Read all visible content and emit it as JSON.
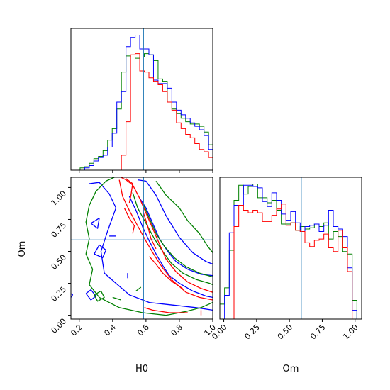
{
  "chart_data": [
    {
      "type": "histogram",
      "parameter": "H0",
      "panel": "top-left",
      "x_range": [
        0.15,
        1.0
      ],
      "y_ticks_shown": false,
      "bin_edges": [
        0.15,
        0.1775,
        0.205,
        0.2325,
        0.26,
        0.2875,
        0.315,
        0.3425,
        0.37,
        0.3975,
        0.425,
        0.4525,
        0.48,
        0.5075,
        0.535,
        0.5625,
        0.59,
        0.6175,
        0.645,
        0.6725,
        0.7,
        0.7275,
        0.755,
        0.7825,
        0.81,
        0.8375,
        0.865,
        0.8925,
        0.92,
        0.9475,
        0.975,
        1.0
      ],
      "truth_value": 0.585,
      "series": [
        {
          "name": "",
          "color": "#008000",
          "values": [
            0,
            0,
            2,
            3,
            6,
            10,
            12,
            17,
            26,
            36,
            53,
            85,
            99,
            98,
            97,
            98,
            101,
            100,
            95,
            79,
            77,
            59,
            53,
            49,
            45,
            42,
            40,
            40,
            38,
            33,
            22
          ]
        },
        {
          "name": "",
          "color": "#0000ff",
          "values": [
            0,
            0,
            0,
            2,
            4,
            8,
            11,
            13,
            20,
            32,
            59,
            68,
            107,
            115,
            117,
            105,
            105,
            100,
            78,
            75,
            75,
            71,
            59,
            52,
            48,
            45,
            41,
            38,
            35,
            30,
            18
          ]
        },
        {
          "name": "",
          "color": "#ff0000",
          "values": [
            0,
            0,
            0,
            0,
            0,
            0,
            0,
            0,
            0,
            0,
            0,
            13,
            42,
            100,
            101,
            86,
            85,
            80,
            77,
            74,
            68,
            59,
            52,
            41,
            36,
            31,
            28,
            23,
            18,
            16,
            11
          ]
        }
      ]
    },
    {
      "type": "contour",
      "parameters": [
        "H0",
        "Om"
      ],
      "panel": "bottom-left",
      "xlabel": "H0",
      "ylabel": "Om",
      "xlim": [
        0.15,
        1.0
      ],
      "ylim": [
        -0.03,
        1.08
      ],
      "x_ticks": [
        "0.2",
        "0.4",
        "0.6",
        "0.8",
        "1.0"
      ],
      "y_ticks": [
        "0.00",
        "0.25",
        "0.50",
        "0.75",
        "1.00"
      ],
      "truth": {
        "H0": 0.585,
        "Om": 0.59
      },
      "series": [
        {
          "name": "",
          "color": "#0000ff",
          "contours": [
            [
              [
                0.26,
                1.03
              ],
              [
                0.32,
                1.04
              ],
              [
                0.38,
                0.95
              ],
              [
                0.42,
                0.84
              ],
              [
                0.37,
                0.66
              ],
              [
                0.33,
                0.5
              ],
              [
                0.35,
                0.33
              ],
              [
                0.42,
                0.25
              ],
              [
                0.5,
                0.16
              ],
              [
                0.62,
                0.1
              ],
              [
                0.76,
                0.08
              ],
              [
                0.9,
                0.06
              ],
              [
                1.0,
                0.04
              ]
            ],
            [
              [
                0.55,
                1.06
              ],
              [
                0.6,
                1.05
              ],
              [
                0.66,
                0.94
              ],
              [
                0.72,
                0.78
              ],
              [
                0.8,
                0.61
              ],
              [
                0.88,
                0.49
              ],
              [
                0.96,
                0.42
              ],
              [
                1.0,
                0.4
              ]
            ],
            [
              [
                0.5,
                0.93
              ],
              [
                0.54,
                0.82
              ],
              [
                0.58,
                0.69
              ],
              [
                0.62,
                0.58
              ],
              [
                0.66,
                0.48
              ],
              [
                0.7,
                0.39
              ],
              [
                0.74,
                0.31
              ],
              [
                0.8,
                0.25
              ],
              [
                0.88,
                0.19
              ],
              [
                0.96,
                0.15
              ],
              [
                1.0,
                0.14
              ]
            ],
            [
              [
                0.56,
                0.92
              ],
              [
                0.6,
                0.84
              ],
              [
                0.64,
                0.72
              ],
              [
                0.68,
                0.6
              ],
              [
                0.73,
                0.5
              ],
              [
                0.78,
                0.42
              ],
              [
                0.85,
                0.36
              ],
              [
                0.93,
                0.32
              ],
              [
                1.0,
                0.31
              ]
            ],
            [
              [
                0.29,
                0.48
              ],
              [
                0.32,
                0.55
              ],
              [
                0.36,
                0.51
              ],
              [
                0.34,
                0.45
              ],
              [
                0.29,
                0.48
              ]
            ],
            [
              [
                0.27,
                0.72
              ],
              [
                0.32,
                0.76
              ],
              [
                0.31,
                0.68
              ],
              [
                0.27,
                0.72
              ]
            ],
            [
              [
                0.38,
                0.62
              ],
              [
                0.42,
                0.62
              ]
            ],
            [
              [
                0.14,
                0.18
              ],
              [
                0.16,
                0.16
              ],
              [
                0.14,
                0.12
              ],
              [
                0.12,
                0.15
              ],
              [
                0.14,
                0.18
              ]
            ],
            [
              [
                0.24,
                0.17
              ],
              [
                0.27,
                0.2
              ],
              [
                0.3,
                0.15
              ],
              [
                0.27,
                0.12
              ],
              [
                0.24,
                0.17
              ]
            ],
            [
              [
                0.49,
                0.33
              ],
              [
                0.49,
                0.29
              ]
            ]
          ]
        },
        {
          "name": "",
          "color": "#008000",
          "contours": [
            [
              [
                0.41,
                1.08
              ],
              [
                0.36,
                1.05
              ],
              [
                0.3,
                0.97
              ],
              [
                0.26,
                0.86
              ],
              [
                0.24,
                0.73
              ],
              [
                0.26,
                0.6
              ],
              [
                0.24,
                0.48
              ],
              [
                0.28,
                0.36
              ],
              [
                0.26,
                0.24
              ],
              [
                0.32,
                0.14
              ],
              [
                0.44,
                0.06
              ],
              [
                0.58,
                0.02
              ],
              [
                0.72,
                0.0
              ],
              [
                0.84,
                0.03
              ],
              [
                0.93,
                0.06
              ],
              [
                1.0,
                0.1
              ]
            ],
            [
              [
                0.66,
                1.05
              ],
              [
                0.72,
                0.94
              ],
              [
                0.8,
                0.84
              ],
              [
                0.85,
                0.74
              ],
              [
                0.92,
                0.64
              ],
              [
                0.97,
                0.54
              ],
              [
                1.0,
                0.49
              ]
            ],
            [
              [
                0.52,
                0.96
              ],
              [
                0.55,
                0.84
              ],
              [
                0.6,
                0.72
              ],
              [
                0.65,
                0.6
              ],
              [
                0.7,
                0.5
              ],
              [
                0.75,
                0.41
              ],
              [
                0.82,
                0.33
              ],
              [
                0.9,
                0.28
              ],
              [
                0.98,
                0.25
              ],
              [
                1.0,
                0.24
              ]
            ],
            [
              [
                0.58,
                0.88
              ],
              [
                0.62,
                0.76
              ],
              [
                0.66,
                0.64
              ],
              [
                0.71,
                0.54
              ],
              [
                0.77,
                0.45
              ],
              [
                0.84,
                0.38
              ],
              [
                0.92,
                0.33
              ],
              [
                1.0,
                0.3
              ]
            ],
            [
              [
                0.29,
                0.16
              ],
              [
                0.33,
                0.19
              ],
              [
                0.35,
                0.14
              ],
              [
                0.31,
                0.11
              ],
              [
                0.29,
                0.16
              ]
            ],
            [
              [
                0.4,
                0.14
              ],
              [
                0.45,
                0.12
              ]
            ],
            [
              [
                0.54,
                0.19
              ],
              [
                0.57,
                0.22
              ]
            ]
          ]
        },
        {
          "name": "",
          "color": "#ff0000",
          "contours": [
            [
              [
                0.45,
                1.08
              ],
              [
                0.48,
                1.06
              ],
              [
                0.52,
                1.02
              ],
              [
                0.56,
                0.92
              ],
              [
                0.6,
                0.8
              ],
              [
                0.64,
                0.68
              ],
              [
                0.68,
                0.56
              ],
              [
                0.72,
                0.44
              ],
              [
                0.78,
                0.34
              ],
              [
                0.85,
                0.26
              ],
              [
                0.93,
                0.21
              ],
              [
                1.0,
                0.18
              ]
            ],
            [
              [
                0.44,
                1.06
              ],
              [
                0.46,
                0.93
              ],
              [
                0.5,
                0.82
              ],
              [
                0.55,
                0.7
              ],
              [
                0.6,
                0.58
              ],
              [
                0.65,
                0.47
              ],
              [
                0.7,
                0.37
              ],
              [
                0.76,
                0.27
              ],
              [
                0.84,
                0.18
              ],
              [
                0.92,
                0.14
              ],
              [
                1.0,
                0.12
              ]
            ],
            [
              [
                0.48,
                1.07
              ],
              [
                0.52,
                1.03
              ],
              [
                0.51,
                0.94
              ],
              [
                0.5,
                0.88
              ]
            ],
            [
              [
                0.47,
                0.84
              ],
              [
                0.5,
                0.76
              ],
              [
                0.53,
                0.7
              ],
              [
                0.52,
                0.64
              ]
            ],
            [
              [
                0.58,
                0.82
              ],
              [
                0.61,
                0.7
              ],
              [
                0.63,
                0.6
              ],
              [
                0.66,
                0.52
              ]
            ],
            [
              [
                0.62,
                0.46
              ],
              [
                0.66,
                0.4
              ],
              [
                0.7,
                0.33
              ],
              [
                0.76,
                0.26
              ],
              [
                0.82,
                0.21
              ]
            ],
            [
              [
                0.59,
                0.06
              ],
              [
                0.64,
                0.04
              ],
              [
                0.74,
                0.02
              ],
              [
                0.85,
                0.02
              ]
            ],
            [
              [
                0.93,
                0.04
              ],
              [
                0.93,
                0.0
              ]
            ]
          ]
        }
      ]
    },
    {
      "type": "histogram",
      "parameter": "Om",
      "panel": "bottom-right",
      "xlabel": "Om",
      "x_range": [
        -0.03,
        1.05
      ],
      "x_ticks": [
        "0.00",
        "0.25",
        "0.50",
        "0.75",
        "1.00"
      ],
      "y_ticks_shown": false,
      "bin_edges": [
        -0.03,
        0.006,
        0.042,
        0.078,
        0.114,
        0.15,
        0.186,
        0.222,
        0.258,
        0.294,
        0.33,
        0.366,
        0.402,
        0.438,
        0.474,
        0.51,
        0.546,
        0.582,
        0.618,
        0.654,
        0.69,
        0.726,
        0.762,
        0.798,
        0.834,
        0.87,
        0.906,
        0.942,
        0.978,
        1.014,
        1.05
      ],
      "truth_value": 0.59,
      "series": [
        {
          "name": "",
          "color": "#008000",
          "values": [
            12,
            25,
            55,
            95,
            107,
            100,
            106,
            108,
            97,
            97,
            93,
            95,
            87,
            76,
            76,
            77,
            71,
            74,
            72,
            73,
            76,
            74,
            77,
            64,
            70,
            66,
            54,
            52,
            15,
            0
          ]
        },
        {
          "name": "",
          "color": "#0000ff",
          "values": [
            0,
            19,
            69,
            91,
            91,
            107,
            107,
            106,
            105,
            94,
            90,
            101,
            95,
            84,
            79,
            86,
            77,
            70,
            74,
            75,
            76,
            70,
            75,
            87,
            74,
            72,
            66,
            41,
            7,
            0
          ]
        },
        {
          "name": "",
          "color": "#ff0000",
          "values": [
            0,
            0,
            0,
            74,
            91,
            87,
            85,
            87,
            85,
            78,
            78,
            83,
            88,
            92,
            75,
            77,
            71,
            70,
            61,
            58,
            63,
            64,
            68,
            57,
            54,
            71,
            57,
            38,
            0,
            0
          ]
        }
      ]
    }
  ]
}
